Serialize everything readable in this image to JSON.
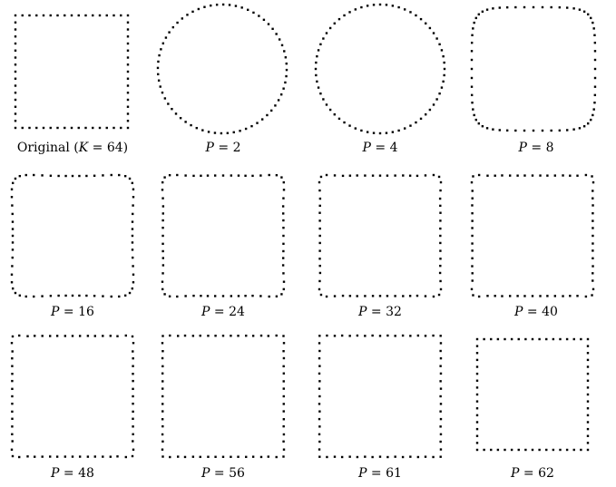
{
  "figure": {
    "shape_points": 64,
    "dot_color": "#000000",
    "panels": [
      {
        "label_prefix": "Original (",
        "label_var": "K",
        "label_eq": " = ",
        "label_value": "64",
        "label_suffix": ")",
        "kind": "square"
      },
      {
        "label_var": "P",
        "label_eq": " = ",
        "label_value": "2",
        "kind": "fourier",
        "terms": 2
      },
      {
        "label_var": "P",
        "label_eq": " = ",
        "label_value": "4",
        "kind": "fourier",
        "terms": 4
      },
      {
        "label_var": "P",
        "label_eq": " = ",
        "label_value": "8",
        "kind": "fourier",
        "terms": 8
      },
      {
        "label_var": "P",
        "label_eq": " = ",
        "label_value": "16",
        "kind": "fourier",
        "terms": 16
      },
      {
        "label_var": "P",
        "label_eq": " = ",
        "label_value": "24",
        "kind": "fourier",
        "terms": 24
      },
      {
        "label_var": "P",
        "label_eq": " = ",
        "label_value": "32",
        "kind": "fourier",
        "terms": 32
      },
      {
        "label_var": "P",
        "label_eq": " = ",
        "label_value": "40",
        "kind": "fourier",
        "terms": 40
      },
      {
        "label_var": "P",
        "label_eq": " = ",
        "label_value": "48",
        "kind": "fourier",
        "terms": 48
      },
      {
        "label_var": "P",
        "label_eq": " = ",
        "label_value": "56",
        "kind": "fourier",
        "terms": 56
      },
      {
        "label_var": "P",
        "label_eq": " = ",
        "label_value": "61",
        "kind": "fourier",
        "terms": 61
      },
      {
        "label_var": "P",
        "label_eq": " = ",
        "label_value": "62",
        "kind": "fourier",
        "terms": 62
      }
    ]
  }
}
